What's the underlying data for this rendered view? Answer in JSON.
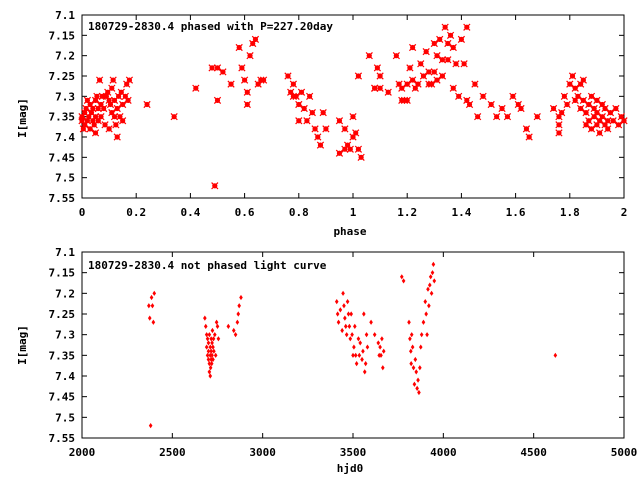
{
  "chart_data": [
    {
      "type": "scatter",
      "title": "180729-2830.4 phased with P=227.20day",
      "xlabel": "phase",
      "ylabel": "I[mag]",
      "xlim": [
        0,
        2
      ],
      "ylim": [
        7.55,
        7.1
      ],
      "y_inverted": true,
      "grid": false,
      "marker_color": "#ff0000",
      "marker": "filled-circle-cross",
      "xticks": [
        0,
        0.2,
        0.4,
        0.6,
        0.8,
        1,
        1.2,
        1.4,
        1.6,
        1.8,
        2
      ],
      "xtick_labels": [
        "0",
        "0.2",
        "0.4",
        "0.6",
        "0.8",
        "1",
        "1.2",
        "1.4",
        "1.6",
        "1.8",
        "2"
      ],
      "yticks": [
        7.1,
        7.15,
        7.2,
        7.25,
        7.3,
        7.35,
        7.4,
        7.45,
        7.5,
        7.55
      ],
      "ytick_labels": [
        "7.1",
        "7.15",
        "7.2",
        "7.25",
        "7.3",
        "7.35",
        "7.4",
        "7.45",
        "7.5",
        "7.55"
      ],
      "points": [
        [
          0.0,
          7.35
        ],
        [
          0.0,
          7.36
        ],
        [
          0.005,
          7.38
        ],
        [
          0.01,
          7.34
        ],
        [
          0.01,
          7.37
        ],
        [
          0.015,
          7.33
        ],
        [
          0.02,
          7.36
        ],
        [
          0.02,
          7.31
        ],
        [
          0.025,
          7.35
        ],
        [
          0.03,
          7.38
        ],
        [
          0.03,
          7.32
        ],
        [
          0.035,
          7.34
        ],
        [
          0.04,
          7.36
        ],
        [
          0.04,
          7.33
        ],
        [
          0.045,
          7.37
        ],
        [
          0.05,
          7.31
        ],
        [
          0.05,
          7.35
        ],
        [
          0.05,
          7.39
        ],
        [
          0.055,
          7.3
        ],
        [
          0.06,
          7.33
        ],
        [
          0.06,
          7.36
        ],
        [
          0.065,
          7.26
        ],
        [
          0.07,
          7.32
        ],
        [
          0.07,
          7.35
        ],
        [
          0.075,
          7.3
        ],
        [
          0.08,
          7.33
        ],
        [
          0.085,
          7.37
        ],
        [
          0.09,
          7.3
        ],
        [
          0.095,
          7.29
        ],
        [
          0.1,
          7.31
        ],
        [
          0.1,
          7.38
        ],
        [
          0.105,
          7.32
        ],
        [
          0.11,
          7.34
        ],
        [
          0.11,
          7.28
        ],
        [
          0.115,
          7.26
        ],
        [
          0.12,
          7.35
        ],
        [
          0.12,
          7.31
        ],
        [
          0.125,
          7.37
        ],
        [
          0.13,
          7.33
        ],
        [
          0.13,
          7.4
        ],
        [
          0.135,
          7.3
        ],
        [
          0.14,
          7.35
        ],
        [
          0.145,
          7.29
        ],
        [
          0.15,
          7.32
        ],
        [
          0.15,
          7.36
        ],
        [
          0.16,
          7.3
        ],
        [
          0.165,
          7.27
        ],
        [
          0.17,
          7.31
        ],
        [
          0.175,
          7.26
        ],
        [
          0.24,
          7.32
        ],
        [
          0.34,
          7.35
        ],
        [
          0.42,
          7.28
        ],
        [
          0.48,
          7.23
        ],
        [
          0.49,
          7.52
        ],
        [
          0.5,
          7.23
        ],
        [
          0.5,
          7.31
        ],
        [
          0.52,
          7.24
        ],
        [
          0.55,
          7.27
        ],
        [
          0.58,
          7.18
        ],
        [
          0.59,
          7.23
        ],
        [
          0.6,
          7.26
        ],
        [
          0.61,
          7.29
        ],
        [
          0.61,
          7.32
        ],
        [
          0.62,
          7.2
        ],
        [
          0.63,
          7.17
        ],
        [
          0.64,
          7.16
        ],
        [
          0.65,
          7.27
        ],
        [
          0.66,
          7.26
        ],
        [
          0.67,
          7.26
        ],
        [
          0.76,
          7.25
        ],
        [
          0.77,
          7.29
        ],
        [
          0.78,
          7.27
        ],
        [
          0.78,
          7.3
        ],
        [
          0.79,
          7.3
        ],
        [
          0.8,
          7.32
        ],
        [
          0.8,
          7.36
        ],
        [
          0.81,
          7.29
        ],
        [
          0.82,
          7.33
        ],
        [
          0.83,
          7.36
        ],
        [
          0.84,
          7.3
        ],
        [
          0.85,
          7.34
        ],
        [
          0.86,
          7.38
        ],
        [
          0.87,
          7.4
        ],
        [
          0.88,
          7.42
        ],
        [
          0.89,
          7.34
        ],
        [
          0.9,
          7.38
        ],
        [
          0.95,
          7.36
        ],
        [
          0.95,
          7.44
        ],
        [
          0.97,
          7.38
        ],
        [
          0.97,
          7.43
        ],
        [
          0.98,
          7.42
        ],
        [
          0.99,
          7.43
        ],
        [
          1.0,
          7.4
        ],
        [
          1.0,
          7.35
        ],
        [
          1.02,
          7.43
        ],
        [
          1.03,
          7.45
        ],
        [
          1.01,
          7.39
        ],
        [
          1.02,
          7.25
        ],
        [
          1.06,
          7.2
        ],
        [
          1.08,
          7.28
        ],
        [
          1.08,
          7.28
        ],
        [
          1.09,
          7.23
        ],
        [
          1.1,
          7.25
        ],
        [
          1.1,
          7.28
        ],
        [
          1.13,
          7.29
        ],
        [
          1.16,
          7.2
        ],
        [
          1.17,
          7.27
        ],
        [
          1.18,
          7.28
        ],
        [
          1.18,
          7.31
        ],
        [
          1.19,
          7.31
        ],
        [
          1.2,
          7.27
        ],
        [
          1.2,
          7.31
        ],
        [
          1.21,
          7.23
        ],
        [
          1.22,
          7.26
        ],
        [
          1.22,
          7.18
        ],
        [
          1.23,
          7.28
        ],
        [
          1.24,
          7.27
        ],
        [
          1.25,
          7.22
        ],
        [
          1.26,
          7.25
        ],
        [
          1.27,
          7.19
        ],
        [
          1.28,
          7.27
        ],
        [
          1.28,
          7.24
        ],
        [
          1.29,
          7.27
        ],
        [
          1.3,
          7.17
        ],
        [
          1.3,
          7.24
        ],
        [
          1.31,
          7.2
        ],
        [
          1.31,
          7.26
        ],
        [
          1.32,
          7.16
        ],
        [
          1.33,
          7.21
        ],
        [
          1.33,
          7.25
        ],
        [
          1.34,
          7.13
        ],
        [
          1.35,
          7.17
        ],
        [
          1.35,
          7.21
        ],
        [
          1.36,
          7.15
        ],
        [
          1.37,
          7.18
        ],
        [
          1.37,
          7.28
        ],
        [
          1.38,
          7.22
        ],
        [
          1.39,
          7.3
        ],
        [
          1.4,
          7.16
        ],
        [
          1.41,
          7.22
        ],
        [
          1.42,
          7.31
        ],
        [
          1.42,
          7.13
        ],
        [
          1.43,
          7.32
        ],
        [
          1.45,
          7.27
        ],
        [
          1.46,
          7.35
        ],
        [
          1.48,
          7.3
        ],
        [
          1.51,
          7.32
        ],
        [
          1.53,
          7.35
        ],
        [
          1.55,
          7.33
        ],
        [
          1.57,
          7.35
        ],
        [
          1.59,
          7.3
        ],
        [
          1.61,
          7.32
        ],
        [
          1.62,
          7.33
        ],
        [
          1.64,
          7.38
        ],
        [
          1.65,
          7.4
        ],
        [
          1.68,
          7.35
        ],
        [
          1.74,
          7.33
        ],
        [
          1.76,
          7.35
        ],
        [
          1.76,
          7.37
        ],
        [
          1.76,
          7.39
        ],
        [
          1.77,
          7.34
        ],
        [
          1.78,
          7.3
        ],
        [
          1.79,
          7.32
        ],
        [
          1.8,
          7.27
        ],
        [
          1.81,
          7.25
        ],
        [
          1.82,
          7.28
        ],
        [
          1.82,
          7.31
        ],
        [
          1.83,
          7.3
        ],
        [
          1.84,
          7.27
        ],
        [
          1.84,
          7.33
        ],
        [
          1.85,
          7.26
        ],
        [
          1.85,
          7.31
        ],
        [
          1.86,
          7.34
        ],
        [
          1.86,
          7.37
        ],
        [
          1.87,
          7.32
        ],
        [
          1.87,
          7.36
        ],
        [
          1.88,
          7.3
        ],
        [
          1.88,
          7.38
        ],
        [
          1.89,
          7.33
        ],
        [
          1.89,
          7.35
        ],
        [
          1.9,
          7.34
        ],
        [
          1.9,
          7.37
        ],
        [
          1.9,
          7.31
        ],
        [
          1.91,
          7.36
        ],
        [
          1.91,
          7.39
        ],
        [
          1.92,
          7.32
        ],
        [
          1.92,
          7.35
        ],
        [
          1.93,
          7.37
        ],
        [
          1.93,
          7.33
        ],
        [
          1.94,
          7.36
        ],
        [
          1.94,
          7.38
        ],
        [
          1.95,
          7.34
        ],
        [
          1.96,
          7.36
        ],
        [
          1.97,
          7.33
        ],
        [
          1.98,
          7.37
        ],
        [
          1.99,
          7.35
        ],
        [
          2.0,
          7.36
        ]
      ]
    },
    {
      "type": "scatter",
      "title": "180729-2830.4 not phased light curve",
      "xlabel": "hjd0",
      "ylabel": "I[mag]",
      "xlim": [
        2000,
        5000
      ],
      "ylim": [
        7.55,
        7.1
      ],
      "y_inverted": true,
      "grid": false,
      "marker_color": "#ff0000",
      "marker": "small-filled-diamond",
      "xticks": [
        2000,
        2500,
        3000,
        3500,
        4000,
        4500,
        5000
      ],
      "xtick_labels": [
        "2000",
        "2500",
        "3000",
        "3500",
        "4000",
        "4500",
        "5000"
      ],
      "yticks": [
        7.1,
        7.15,
        7.2,
        7.25,
        7.3,
        7.35,
        7.4,
        7.45,
        7.5,
        7.55
      ],
      "ytick_labels": [
        "7.1",
        "7.15",
        "7.2",
        "7.25",
        "7.3",
        "7.35",
        "7.4",
        "7.45",
        "7.5",
        "7.55"
      ],
      "points": [
        [
          2370,
          7.23
        ],
        [
          2375,
          7.26
        ],
        [
          2380,
          7.52
        ],
        [
          2385,
          7.21
        ],
        [
          2390,
          7.23
        ],
        [
          2395,
          7.27
        ],
        [
          2400,
          7.2
        ],
        [
          2680,
          7.26
        ],
        [
          2685,
          7.28
        ],
        [
          2690,
          7.3
        ],
        [
          2690,
          7.33
        ],
        [
          2695,
          7.31
        ],
        [
          2695,
          7.35
        ],
        [
          2700,
          7.32
        ],
        [
          2700,
          7.34
        ],
        [
          2700,
          7.36
        ],
        [
          2705,
          7.3
        ],
        [
          2705,
          7.37
        ],
        [
          2705,
          7.39
        ],
        [
          2710,
          7.33
        ],
        [
          2710,
          7.35
        ],
        [
          2710,
          7.4
        ],
        [
          2712,
          7.38
        ],
        [
          2715,
          7.34
        ],
        [
          2715,
          7.31
        ],
        [
          2715,
          7.36
        ],
        [
          2718,
          7.37
        ],
        [
          2720,
          7.32
        ],
        [
          2720,
          7.35
        ],
        [
          2722,
          7.29
        ],
        [
          2725,
          7.33
        ],
        [
          2725,
          7.36
        ],
        [
          2728,
          7.31
        ],
        [
          2730,
          7.34
        ],
        [
          2735,
          7.3
        ],
        [
          2740,
          7.35
        ],
        [
          2745,
          7.27
        ],
        [
          2750,
          7.28
        ],
        [
          2755,
          7.31
        ],
        [
          2810,
          7.28
        ],
        [
          2840,
          7.29
        ],
        [
          2850,
          7.3
        ],
        [
          2860,
          7.27
        ],
        [
          2865,
          7.25
        ],
        [
          2870,
          7.23
        ],
        [
          2880,
          7.21
        ],
        [
          3410,
          7.22
        ],
        [
          3415,
          7.25
        ],
        [
          3420,
          7.27
        ],
        [
          3430,
          7.24
        ],
        [
          3440,
          7.29
        ],
        [
          3445,
          7.2
        ],
        [
          3450,
          7.23
        ],
        [
          3455,
          7.26
        ],
        [
          3460,
          7.28
        ],
        [
          3465,
          7.3
        ],
        [
          3470,
          7.22
        ],
        [
          3475,
          7.25
        ],
        [
          3480,
          7.28
        ],
        [
          3485,
          7.31
        ],
        [
          3490,
          7.25
        ],
        [
          3495,
          7.3
        ],
        [
          3500,
          7.35
        ],
        [
          3505,
          7.33
        ],
        [
          3510,
          7.28
        ],
        [
          3515,
          7.35
        ],
        [
          3520,
          7.37
        ],
        [
          3530,
          7.31
        ],
        [
          3535,
          7.35
        ],
        [
          3540,
          7.32
        ],
        [
          3550,
          7.36
        ],
        [
          3555,
          7.34
        ],
        [
          3560,
          7.25
        ],
        [
          3565,
          7.39
        ],
        [
          3570,
          7.37
        ],
        [
          3575,
          7.3
        ],
        [
          3580,
          7.33
        ],
        [
          3600,
          7.27
        ],
        [
          3620,
          7.3
        ],
        [
          3640,
          7.32
        ],
        [
          3645,
          7.35
        ],
        [
          3650,
          7.33
        ],
        [
          3655,
          7.35
        ],
        [
          3660,
          7.31
        ],
        [
          3665,
          7.38
        ],
        [
          3670,
          7.34
        ],
        [
          3770,
          7.16
        ],
        [
          3780,
          7.17
        ],
        [
          3810,
          7.27
        ],
        [
          3815,
          7.31
        ],
        [
          3820,
          7.34
        ],
        [
          3822,
          7.37
        ],
        [
          3825,
          7.3
        ],
        [
          3830,
          7.33
        ],
        [
          3835,
          7.38
        ],
        [
          3840,
          7.42
        ],
        [
          3845,
          7.36
        ],
        [
          3850,
          7.39
        ],
        [
          3855,
          7.43
        ],
        [
          3860,
          7.41
        ],
        [
          3865,
          7.44
        ],
        [
          3870,
          7.38
        ],
        [
          3875,
          7.33
        ],
        [
          3880,
          7.3
        ],
        [
          3890,
          7.27
        ],
        [
          3900,
          7.22
        ],
        [
          3905,
          7.25
        ],
        [
          3910,
          7.3
        ],
        [
          3915,
          7.19
        ],
        [
          3920,
          7.23
        ],
        [
          3925,
          7.18
        ],
        [
          3930,
          7.16
        ],
        [
          3935,
          7.2
        ],
        [
          3940,
          7.15
        ],
        [
          3945,
          7.13
        ],
        [
          3950,
          7.17
        ],
        [
          4620,
          7.35
        ]
      ]
    }
  ]
}
